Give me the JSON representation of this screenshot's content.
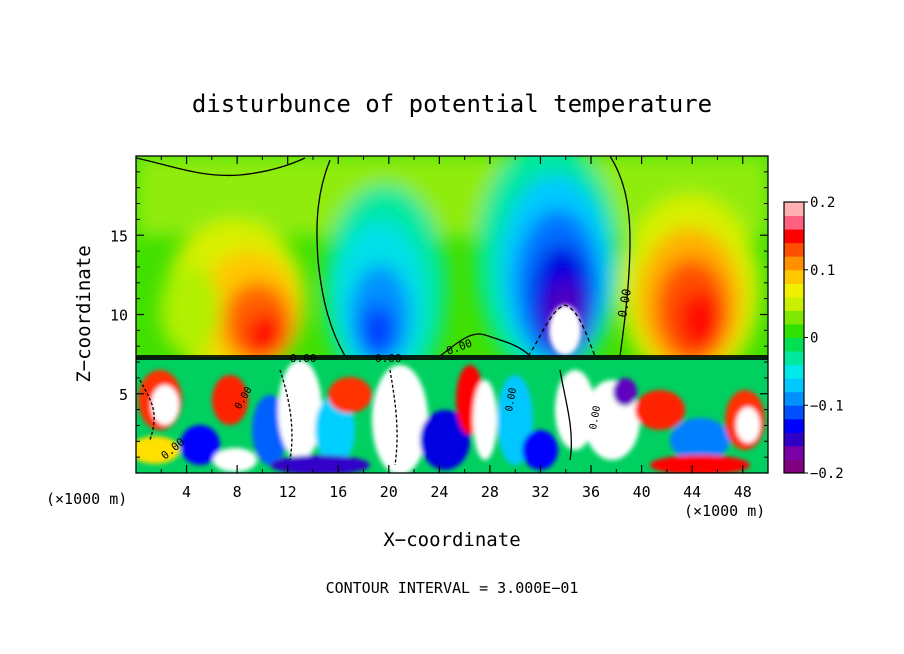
{
  "chart_data": {
    "type": "heatmap",
    "title": "disturbunce of potential temperature",
    "xlabel": "X−coordinate",
    "ylabel": "Z−coordinate",
    "x_unit_left": "(×1000 m)",
    "x_unit_right": "(×1000 m)",
    "footer": "CONTOUR INTERVAL = 3.000E−01",
    "xlim": [
      0,
      50
    ],
    "ylim": [
      0,
      20
    ],
    "x_ticks": [
      "4",
      "8",
      "12",
      "16",
      "20",
      "24",
      "28",
      "32",
      "36",
      "40",
      "44",
      "48"
    ],
    "x_tick_values": [
      4,
      8,
      12,
      16,
      20,
      24,
      28,
      32,
      36,
      40,
      44,
      48
    ],
    "y_ticks": [
      "5",
      "10",
      "15"
    ],
    "y_tick_values": [
      5,
      10,
      15
    ],
    "colorbar": {
      "min": -0.2,
      "max": 0.2,
      "tick_labels": [
        "0.2",
        "0.1",
        "0",
        "−0.1",
        "−0.2"
      ],
      "tick_values": [
        0.2,
        0.1,
        0,
        -0.1,
        -0.2
      ],
      "colors": [
        "#800080",
        "#7a00a8",
        "#3000c8",
        "#0000ff",
        "#0050ff",
        "#0090ff",
        "#00c8ff",
        "#00e8e8",
        "#00e8a0",
        "#00e050",
        "#30e000",
        "#80e800",
        "#c8f000",
        "#f0f000",
        "#ffc800",
        "#ff9000",
        "#ff5000",
        "#ff0000",
        "#ff6080",
        "#ffb0b0"
      ]
    },
    "contour_labels": [
      "0.00",
      "0.00",
      "0.00",
      "0.00",
      "0.00",
      "0.00",
      "0.00",
      "0.00"
    ],
    "contour_interval": 0.3,
    "grid": false
  }
}
